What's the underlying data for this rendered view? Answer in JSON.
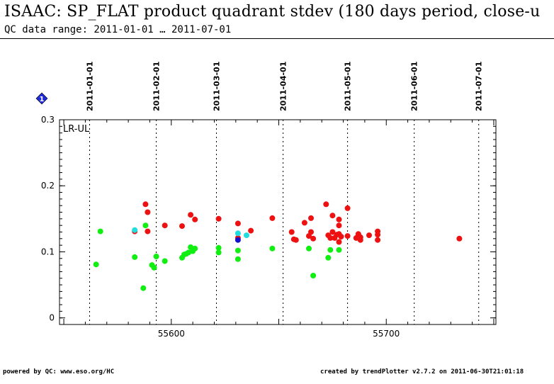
{
  "header": {
    "title": "ISAAC: SP_FLAT product quadrant stdev (180 days period, close-u",
    "subtitle": "QC data range: 2011-01-01 … 2011-07-01"
  },
  "footer": {
    "left": "powered by QC: www.eso.org/HC",
    "right": "created by trendPlotter v2.7.2 on 2011-06-30T21:01:18"
  },
  "badge": {
    "label": "1",
    "color": "#1f2bd6",
    "icon": "info-diamond-icon"
  },
  "chart_data": {
    "type": "scatter",
    "panel_label": "LR-UL",
    "xlim": [
      55548,
      55751
    ],
    "ylim": [
      -0.01,
      0.3
    ],
    "x_ticks": [
      "55600",
      "55700"
    ],
    "x_tick_values": [
      55600,
      55700
    ],
    "y_ticks": [
      "0",
      "0.1",
      "0.2",
      "0.3"
    ],
    "y_tick_values": [
      0,
      0.1,
      0.2,
      0.3
    ],
    "date_markers": [
      {
        "label": "2011-01-01",
        "mjd": 55562
      },
      {
        "label": "2011-02-01",
        "mjd": 55593
      },
      {
        "label": "2011-03-01",
        "mjd": 55621
      },
      {
        "label": "2011-04-01",
        "mjd": 55652
      },
      {
        "label": "2011-05-01",
        "mjd": 55682
      },
      {
        "label": "2011-06-01",
        "mjd": 55713
      },
      {
        "label": "2011-07-01",
        "mjd": 55743
      }
    ],
    "colors": {
      "red": "#ee1111",
      "green": "#11ee11",
      "cyan": "#22dddd",
      "blue": "#1111cc"
    },
    "series": [
      {
        "color": "red",
        "points": [
          [
            55583,
            0.131
          ],
          [
            55588,
            0.172
          ],
          [
            55589,
            0.16
          ],
          [
            55589,
            0.131
          ],
          [
            55597,
            0.14
          ],
          [
            55605,
            0.139
          ],
          [
            55609,
            0.156
          ],
          [
            55611,
            0.149
          ],
          [
            55622,
            0.15
          ],
          [
            55631,
            0.143
          ],
          [
            55631,
            0.121
          ],
          [
            55637,
            0.132
          ],
          [
            55647,
            0.151
          ],
          [
            55656,
            0.13
          ],
          [
            55657,
            0.119
          ],
          [
            55658,
            0.118
          ],
          [
            55662,
            0.144
          ],
          [
            55664,
            0.124
          ],
          [
            55665,
            0.13
          ],
          [
            55665,
            0.151
          ],
          [
            55666,
            0.12
          ],
          [
            55672,
            0.172
          ],
          [
            55673,
            0.125
          ],
          [
            55674,
            0.121
          ],
          [
            55675,
            0.155
          ],
          [
            55675,
            0.13
          ],
          [
            55676,
            0.121
          ],
          [
            55677,
            0.126
          ],
          [
            55678,
            0.149
          ],
          [
            55678,
            0.14
          ],
          [
            55678,
            0.127
          ],
          [
            55679,
            0.123
          ],
          [
            55678,
            0.115
          ],
          [
            55682,
            0.166
          ],
          [
            55682,
            0.124
          ],
          [
            55686,
            0.121
          ],
          [
            55687,
            0.127
          ],
          [
            55688,
            0.122
          ],
          [
            55688,
            0.118
          ],
          [
            55692,
            0.125
          ],
          [
            55696,
            0.131
          ],
          [
            55696,
            0.126
          ],
          [
            55696,
            0.118
          ],
          [
            55734,
            0.12
          ]
        ]
      },
      {
        "color": "green",
        "points": [
          [
            55565,
            0.081
          ],
          [
            55567,
            0.131
          ],
          [
            55583,
            0.092
          ],
          [
            55587,
            0.045
          ],
          [
            55588,
            0.14
          ],
          [
            55591,
            0.08
          ],
          [
            55592,
            0.076
          ],
          [
            55593,
            0.093
          ],
          [
            55597,
            0.086
          ],
          [
            55605,
            0.091
          ],
          [
            55606,
            0.096
          ],
          [
            55607,
            0.097
          ],
          [
            55608,
            0.099
          ],
          [
            55609,
            0.107
          ],
          [
            55610,
            0.101
          ],
          [
            55611,
            0.105
          ],
          [
            55622,
            0.106
          ],
          [
            55622,
            0.099
          ],
          [
            55631,
            0.102
          ],
          [
            55631,
            0.089
          ],
          [
            55647,
            0.105
          ],
          [
            55664,
            0.105
          ],
          [
            55666,
            0.064
          ],
          [
            55673,
            0.091
          ],
          [
            55674,
            0.103
          ],
          [
            55678,
            0.103
          ]
        ]
      },
      {
        "color": "cyan",
        "points": [
          [
            55583,
            0.133
          ],
          [
            55631,
            0.128
          ],
          [
            55635,
            0.125
          ]
        ]
      },
      {
        "color": "blue",
        "points": [
          [
            55631,
            0.118
          ]
        ]
      }
    ]
  }
}
